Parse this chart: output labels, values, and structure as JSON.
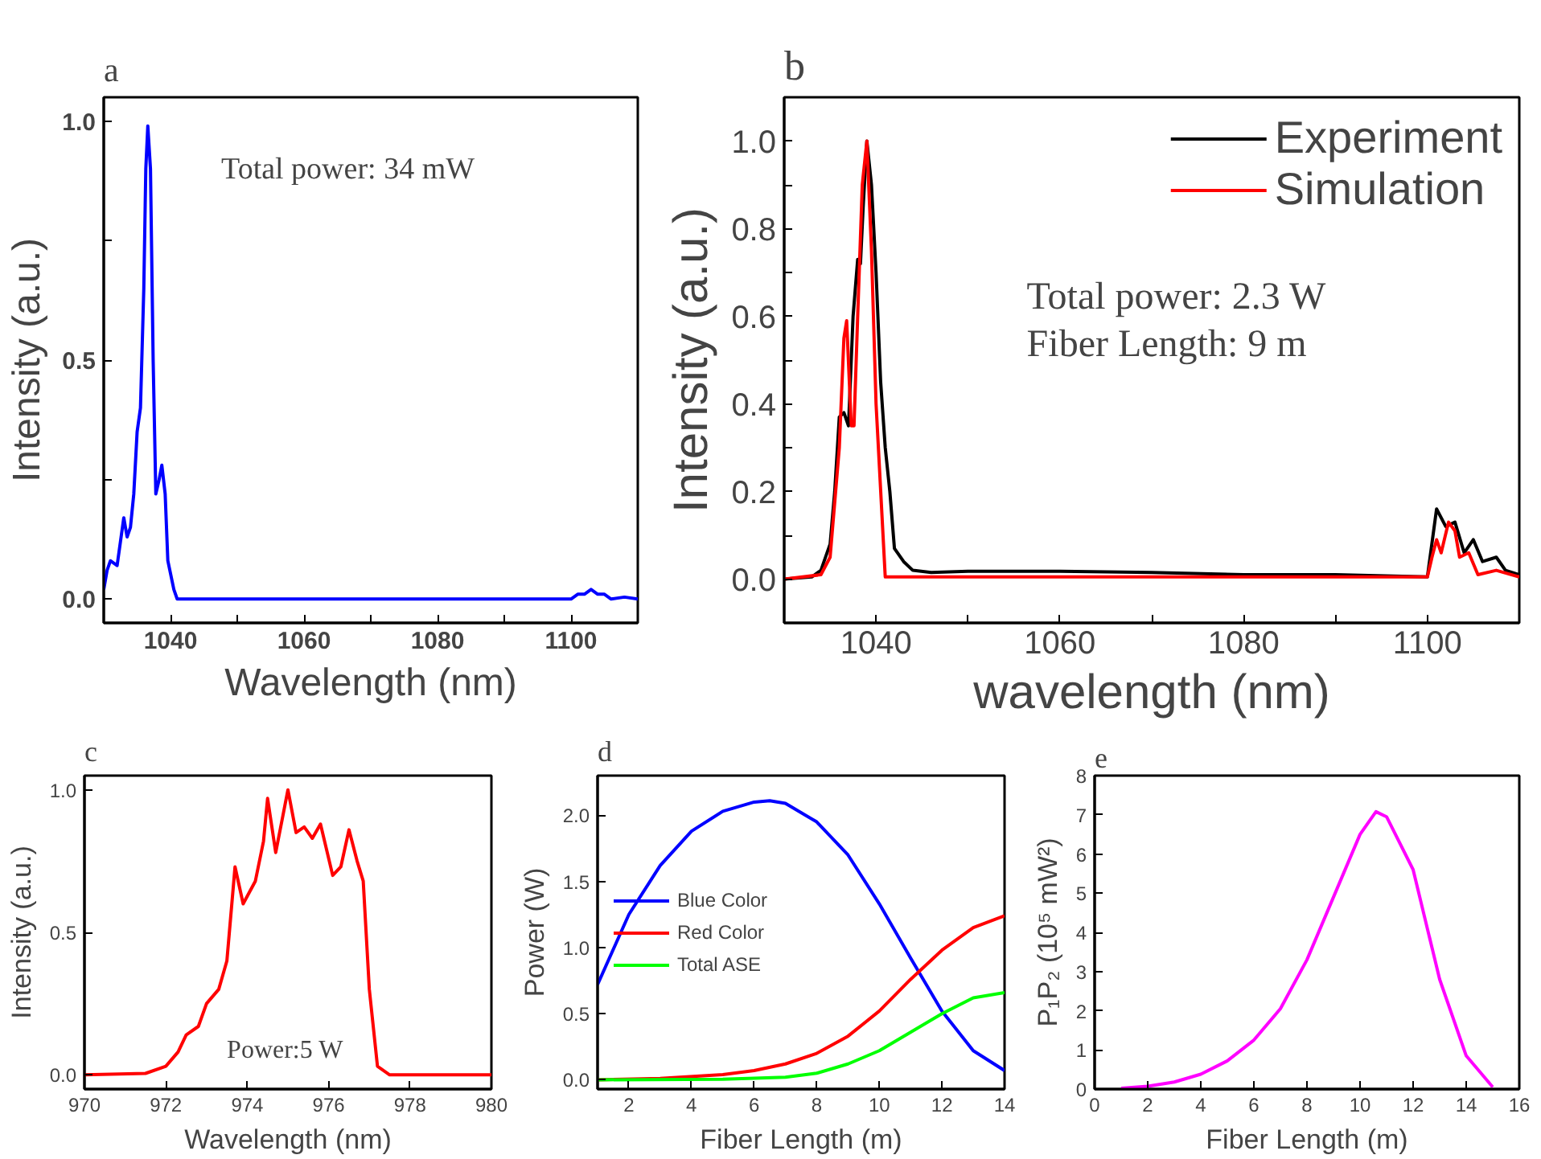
{
  "chart_data": [
    {
      "type": "line",
      "title": "a",
      "xlabel": "Wavelength (nm)",
      "ylabel": "Intensity (a.u.)",
      "annotations": [
        "Total power: 34 mW"
      ],
      "xlim": [
        1030,
        1110
      ],
      "xticks": [
        1040,
        1060,
        1080,
        1100,
        {
          "value": 1050,
          "label": null
        },
        {
          "value": 1070,
          "label": null
        },
        {
          "value": 1090,
          "label": null
        }
      ],
      "ylim": [
        -0.05,
        1.05
      ],
      "yticks": [
        {
          "value": 0,
          "label": "0.0"
        },
        {
          "value": 0.5,
          "label": "0.5"
        },
        {
          "value": 1,
          "label": "1.0"
        },
        {
          "value": 0.25,
          "label": null
        },
        {
          "value": 0.75,
          "label": null
        }
      ],
      "series": [
        {
          "color": "#0000ff",
          "x": [
            1030,
            1030.5,
            1031,
            1032,
            1032.5,
            1033,
            1033.5,
            1034,
            1034.5,
            1035,
            1035.5,
            1036,
            1036.3,
            1036.6,
            1037,
            1037.4,
            1037.8,
            1038.3,
            1038.7,
            1039.2,
            1039.6,
            1040.5,
            1041,
            1100,
            1101,
            1102,
            1103,
            1104,
            1105,
            1106,
            1108,
            1110
          ],
          "values": [
            0.02,
            0.06,
            0.08,
            0.07,
            0.12,
            0.17,
            0.13,
            0.15,
            0.22,
            0.35,
            0.4,
            0.65,
            0.9,
            0.99,
            0.9,
            0.5,
            0.22,
            0.25,
            0.28,
            0.22,
            0.08,
            0.02,
            0,
            0,
            0.01,
            0.01,
            0.02,
            0.01,
            0.01,
            0,
            0.004,
            0
          ]
        }
      ]
    },
    {
      "type": "line",
      "title": "b",
      "xlabel": "wavelength (nm)",
      "ylabel": "Intensity (a.u.)",
      "annotations": [
        "Total power: 2.3 W",
        "Fiber Length: 9 m"
      ],
      "legend": "top right",
      "xlim": [
        1030,
        1110
      ],
      "xticks": [
        1040,
        1060,
        1080,
        1100,
        {
          "value": 1050,
          "label": null
        },
        {
          "value": 1070,
          "label": null
        },
        {
          "value": 1090,
          "label": null
        }
      ],
      "ylim": [
        -0.1,
        1.1
      ],
      "yticks": [
        {
          "value": 0,
          "label": "0.0"
        },
        {
          "value": 0.2,
          "label": "0.2"
        },
        {
          "value": 0.4,
          "label": "0.4"
        },
        {
          "value": 0.6,
          "label": "0.6"
        },
        {
          "value": 0.8,
          "label": "0.8"
        },
        {
          "value": 1,
          "label": "1.0"
        },
        {
          "value": 0.1,
          "label": null
        },
        {
          "value": 0.3,
          "label": null
        },
        {
          "value": 0.5,
          "label": null
        },
        {
          "value": 0.7,
          "label": null
        },
        {
          "value": 0.9,
          "label": null
        }
      ],
      "series": [
        {
          "name": "Experiment",
          "color": "#000000",
          "x": [
            1030,
            1033,
            1034,
            1035,
            1035.5,
            1036,
            1036.5,
            1037,
            1037.5,
            1038,
            1038.3,
            1038.6,
            1039,
            1039.5,
            1040,
            1040.5,
            1041,
            1041.5,
            1042,
            1043,
            1044,
            1046,
            1050,
            1060,
            1070,
            1080,
            1090,
            1100,
            1101,
            1102,
            1103,
            1104,
            1105,
            1106,
            1107.5,
            1108.5,
            1110
          ],
          "values": [
            0,
            0.005,
            0.02,
            0.08,
            0.2,
            0.37,
            0.38,
            0.35,
            0.6,
            0.73,
            0.72,
            0.85,
            1.0,
            0.9,
            0.7,
            0.45,
            0.3,
            0.2,
            0.07,
            0.04,
            0.02,
            0.015,
            0.018,
            0.018,
            0.015,
            0.01,
            0.01,
            0.005,
            0.16,
            0.12,
            0.13,
            0.06,
            0.09,
            0.04,
            0.05,
            0.02,
            0.01
          ]
        },
        {
          "name": "Simulation",
          "color": "#ff0000",
          "x": [
            1030,
            1034,
            1035,
            1036,
            1036.5,
            1036.8,
            1037.3,
            1037.6,
            1038,
            1038.5,
            1039,
            1039.5,
            1040,
            1041,
            1060,
            1100,
            1100.5,
            1101,
            1101.5,
            1102.3,
            1103,
            1103.5,
            1104.5,
            1105.5,
            1107.5,
            1110
          ],
          "values": [
            0,
            0.01,
            0.05,
            0.3,
            0.55,
            0.59,
            0.35,
            0.35,
            0.6,
            0.9,
            1.0,
            0.75,
            0.4,
            0.005,
            0.005,
            0.005,
            0.05,
            0.09,
            0.06,
            0.13,
            0.11,
            0.05,
            0.06,
            0.01,
            0.02,
            0.005
          ]
        }
      ]
    },
    {
      "type": "line",
      "title": "c",
      "xlabel": "Wavelength (nm)",
      "ylabel": "Intensity (a.u.)",
      "annotations": [
        "Power:5 W"
      ],
      "xlim": [
        970,
        980
      ],
      "xticks": [
        970,
        972,
        974,
        976,
        978,
        980
      ],
      "ylim": [
        -0.05,
        1.05
      ],
      "yticks": [
        {
          "value": 0,
          "label": "0.0"
        },
        {
          "value": 0.5,
          "label": "0.5"
        },
        {
          "value": 1,
          "label": "1.0"
        }
      ],
      "series": [
        {
          "color": "#ff0000",
          "x": [
            970,
            971.5,
            972,
            972.3,
            972.5,
            972.8,
            973,
            973.3,
            973.5,
            973.7,
            973.9,
            974.2,
            974.4,
            974.5,
            974.7,
            975,
            975.2,
            975.4,
            975.6,
            975.8,
            976.1,
            976.3,
            976.5,
            976.7,
            976.85,
            977,
            977.2,
            977.5,
            980
          ],
          "values": [
            0,
            0.005,
            0.03,
            0.08,
            0.14,
            0.17,
            0.25,
            0.3,
            0.4,
            0.73,
            0.6,
            0.68,
            0.82,
            0.97,
            0.78,
            1.0,
            0.85,
            0.87,
            0.83,
            0.88,
            0.7,
            0.73,
            0.86,
            0.75,
            0.68,
            0.3,
            0.03,
            0,
            0
          ]
        }
      ]
    },
    {
      "type": "line",
      "title": "d",
      "xlabel": "Fiber Length (m)",
      "ylabel": "Power (W)",
      "legend": "left",
      "xlim": [
        1,
        14
      ],
      "xticks": [
        2,
        4,
        6,
        8,
        10,
        12,
        14
      ],
      "ylim": [
        -0.07,
        2.3
      ],
      "yticks": [
        {
          "value": 0,
          "label": "0.0"
        },
        {
          "value": 0.5,
          "label": "0.5"
        },
        {
          "value": 1,
          "label": "1.0"
        },
        {
          "value": 1.5,
          "label": "1.5"
        },
        {
          "value": 2,
          "label": "2.0"
        }
      ],
      "series": [
        {
          "name": "Blue Color",
          "color": "#0000ff",
          "x": [
            1,
            2,
            3,
            4,
            5,
            6,
            6.5,
            7,
            8,
            9,
            10,
            11,
            12,
            13,
            14
          ],
          "values": [
            0.72,
            1.25,
            1.62,
            1.88,
            2.03,
            2.1,
            2.11,
            2.09,
            1.95,
            1.7,
            1.33,
            0.92,
            0.52,
            0.22,
            0.07
          ]
        },
        {
          "name": "Red Color",
          "color": "#ff0000",
          "x": [
            1,
            3,
            5,
            6,
            7,
            8,
            9,
            10,
            11,
            12,
            13,
            14
          ],
          "values": [
            0,
            0.01,
            0.04,
            0.07,
            0.12,
            0.2,
            0.33,
            0.52,
            0.76,
            0.98,
            1.15,
            1.24
          ]
        },
        {
          "name": "Total ASE",
          "color": "#00ff00",
          "x": [
            1,
            5,
            7,
            8,
            9,
            10,
            11,
            12,
            13,
            14
          ],
          "values": [
            0,
            0.005,
            0.02,
            0.05,
            0.12,
            0.22,
            0.36,
            0.5,
            0.62,
            0.66
          ]
        }
      ]
    },
    {
      "type": "line",
      "title": "e",
      "xlabel": "Fiber Length (m)",
      "ylabel": "P₁P₂ (10⁵ mW²)",
      "xlim": [
        0,
        16
      ],
      "xticks": [
        0,
        2,
        4,
        6,
        8,
        10,
        12,
        14,
        16
      ],
      "ylim": [
        0,
        8
      ],
      "yticks": [
        0,
        1,
        2,
        3,
        4,
        5,
        6,
        7,
        8
      ],
      "series": [
        {
          "color": "#ff00ff",
          "x": [
            1,
            2,
            3,
            4,
            5,
            6,
            7,
            8,
            9,
            10,
            10.6,
            11,
            12,
            13,
            14,
            15
          ],
          "values": [
            0.02,
            0.07,
            0.18,
            0.38,
            0.72,
            1.25,
            2.05,
            3.3,
            4.9,
            6.5,
            7.08,
            6.95,
            5.6,
            2.8,
            0.85,
            0.05
          ]
        }
      ]
    }
  ]
}
